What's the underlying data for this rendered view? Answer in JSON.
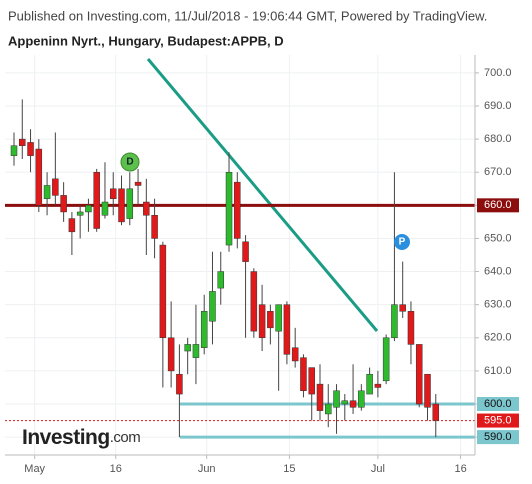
{
  "header": "Published on Investing.com, 11/Jul/2018 - 19:06:44 GMT, Powered by TradingView.",
  "logo": {
    "name": "Investing",
    "suffix": ".com"
  },
  "chart_data": {
    "type": "candlestick",
    "title": "Appeninn Nyrt., Hungary, Budapest:APPB, D",
    "candles": {
      "open": [
        675,
        680,
        679,
        677,
        662,
        668,
        663,
        656,
        657,
        658,
        670,
        657,
        665,
        665,
        656,
        667,
        661,
        657,
        648,
        620,
        609,
        616,
        614,
        617,
        625,
        635,
        648,
        667,
        649,
        640,
        630,
        628,
        622,
        630,
        617,
        614,
        611,
        606,
        597,
        599,
        600,
        601,
        599,
        603,
        606,
        607,
        620,
        630,
        628,
        618,
        609,
        600
      ],
      "high": [
        682,
        692,
        683,
        680,
        670,
        682,
        667,
        658,
        660,
        662,
        671,
        673,
        670,
        669,
        670,
        671,
        668,
        662,
        649,
        631,
        618,
        620,
        630,
        633,
        646,
        646,
        676,
        670,
        651,
        641,
        636,
        630,
        630,
        631,
        623,
        615,
        611,
        612,
        606,
        606,
        603,
        612,
        606,
        611,
        610,
        621,
        670,
        643,
        631,
        618,
        609,
        603
      ],
      "low": [
        672,
        674,
        670,
        658,
        657,
        660,
        655,
        645,
        650,
        652,
        652,
        656,
        657,
        654,
        654,
        660,
        645,
        644,
        605,
        605,
        590,
        609,
        606,
        615,
        618,
        630,
        646,
        647,
        620,
        620,
        616,
        618,
        604,
        612,
        611,
        602,
        595,
        595,
        593,
        591,
        595,
        597,
        598,
        605,
        602,
        606,
        619,
        626,
        612,
        599,
        595,
        590
      ],
      "close": [
        678,
        678,
        675,
        660,
        666,
        663,
        658,
        652,
        658,
        660,
        653,
        661,
        662,
        655,
        665,
        666,
        657,
        650,
        620,
        610,
        603,
        618,
        618,
        628,
        634,
        640,
        670,
        650,
        643,
        622,
        620,
        623,
        630,
        615,
        613,
        604,
        603,
        598,
        600,
        604,
        601,
        599,
        604,
        609,
        605,
        620,
        630,
        628,
        618,
        600,
        599,
        595
      ]
    },
    "up_color": "#2dbb2d",
    "down_color": "#e0191b",
    "ylim": [
      584.6,
      705.4
    ],
    "yticks": [
      {
        "value": 590,
        "label": "590.0"
      },
      {
        "value": 600,
        "label": "600.0"
      },
      {
        "value": 610,
        "label": "610.0"
      },
      {
        "value": 620,
        "label": "620.0"
      },
      {
        "value": 630,
        "label": "630.0"
      },
      {
        "value": 640,
        "label": "640.0"
      },
      {
        "value": 650,
        "label": "650.0"
      },
      {
        "value": 660,
        "label": "660.0"
      },
      {
        "value": 670,
        "label": "670.0"
      },
      {
        "value": 680,
        "label": "680.0"
      },
      {
        "value": 690,
        "label": "690.0"
      },
      {
        "value": 700,
        "label": "700.0"
      }
    ],
    "xticks": [
      {
        "value": 2.5,
        "label": "May"
      },
      {
        "value": 12.3,
        "label": "16"
      },
      {
        "value": 23.3,
        "label": "Jun"
      },
      {
        "value": 33.3,
        "label": "15"
      },
      {
        "value": 44,
        "label": "Jul"
      },
      {
        "value": 54,
        "label": "16"
      }
    ],
    "grid": true,
    "levels": [
      {
        "value": 660,
        "label": "660.0",
        "color": "#8b0d0d",
        "dashed": false
      },
      {
        "value": 600,
        "label": "600.0",
        "color": "#7cc6ce",
        "dashed": false
      },
      {
        "value": 590,
        "label": "590.0",
        "color": "#7cc6ce",
        "dashed": false
      },
      {
        "value": 595,
        "label": "595.0",
        "color": "#e0191b",
        "dashed": true
      }
    ],
    "events": [
      "D",
      "P"
    ]
  }
}
